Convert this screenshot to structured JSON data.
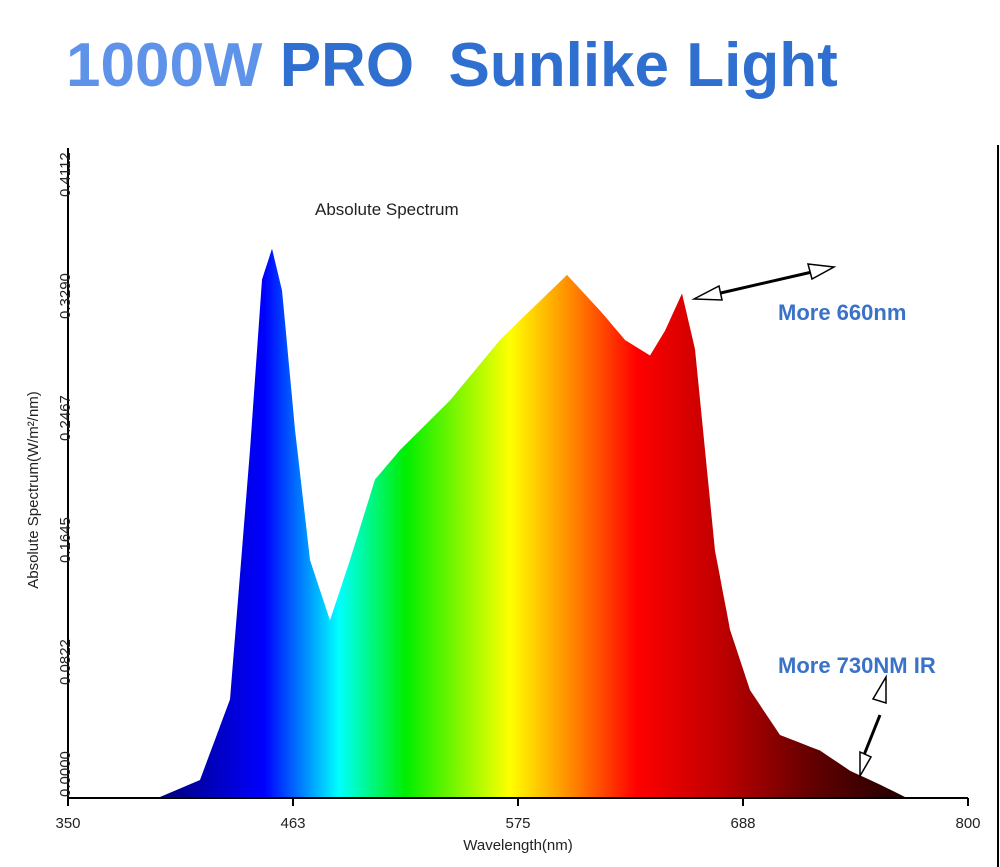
{
  "headline": {
    "part1": "1000W",
    "part2": "PRO  Sunlike Light"
  },
  "annotations": {
    "peak660": "More 660nm",
    "ir730": "More 730NM IR"
  },
  "colors": {
    "headline_light": "#5f93ea",
    "headline_dark": "#2f6fcf",
    "annotation": "#3a72c8"
  },
  "chart_data": {
    "type": "area",
    "title": "Absolute Spectrum",
    "xlabel": "Wavelength(nm)",
    "ylabel": "Absolute Spectrum(W/m²/nm)",
    "xlim": [
      350,
      800
    ],
    "ylim": [
      0,
      0.4112
    ],
    "xticks": [
      "350",
      "463",
      "575",
      "688",
      "800"
    ],
    "yticks": [
      "0.0000",
      "0.0822",
      "0.1645",
      "0.2467",
      "0.3290",
      "0.4112"
    ],
    "grid": false,
    "fill": "wavelength-colored spectrum",
    "x": [
      396,
      416,
      431,
      441,
      447,
      452,
      457,
      463.5,
      471,
      481,
      491,
      503.5,
      516,
      541,
      566,
      581,
      599.5,
      616,
      628.5,
      641,
      648.5,
      657,
      663.5,
      668.5,
      673.5,
      681,
      691,
      706,
      726,
      741,
      756,
      768.5
    ],
    "y": [
      0,
      0.011,
      0.063,
      0.224,
      0.334,
      0.354,
      0.327,
      0.237,
      0.153,
      0.114,
      0.153,
      0.205,
      0.224,
      0.256,
      0.295,
      0.314,
      0.337,
      0.314,
      0.295,
      0.285,
      0.301,
      0.325,
      0.289,
      0.224,
      0.159,
      0.108,
      0.069,
      0.04,
      0.03,
      0.017,
      0.008,
      0
    ]
  }
}
